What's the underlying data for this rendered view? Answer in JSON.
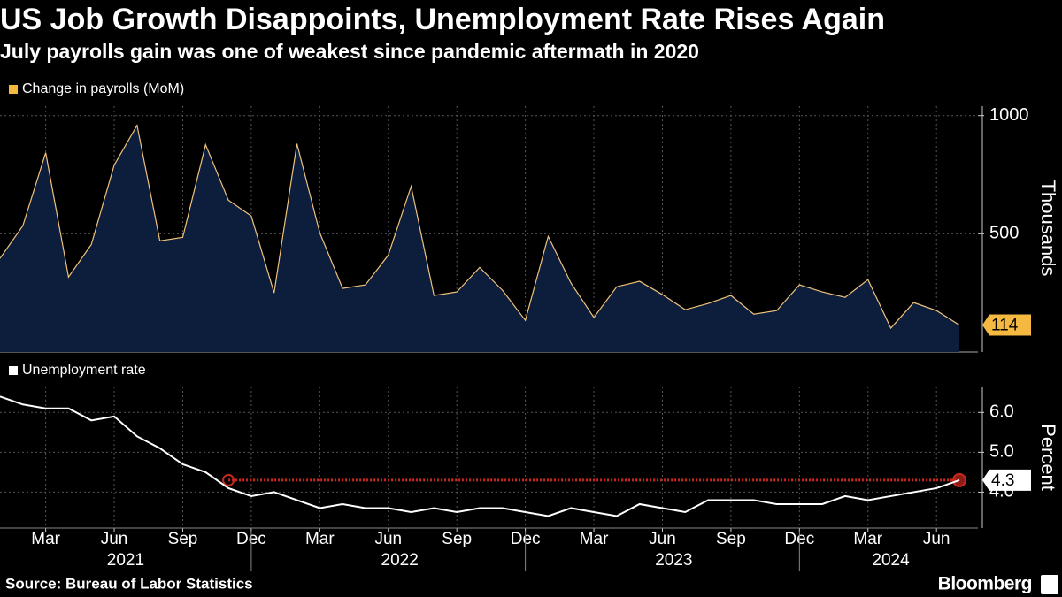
{
  "title": "US Job Growth Disappoints, Unemployment Rate Rises Again",
  "subtitle": "July payrolls gain was one of weakest since pandemic aftermath in 2020",
  "source": "Source: Bureau of Labor Statistics",
  "brand": "Bloomberg",
  "chart_data": [
    {
      "type": "area",
      "series": [
        {
          "name": "Change in payrolls (MoM)",
          "color": "#f0c27a",
          "fill": "#0c1e3b",
          "values": [
            396,
            534,
            843,
            317,
            455,
            791,
            959,
            470,
            485,
            877,
            642,
            575,
            250,
            881,
            504,
            269,
            284,
            410,
            701,
            239,
            254,
            358,
            261,
            134,
            489,
            291,
            146,
            276,
            299,
            243,
            179,
            205,
            239,
            160,
            175,
            284,
            254,
            231,
            306,
            101,
            209,
            175,
            114
          ]
        }
      ],
      "ylabel": "Thousands",
      "ylim": [
        0,
        1040
      ],
      "yticks": [
        500,
        1000
      ],
      "grid": true,
      "last_value_color": "#f5b942"
    },
    {
      "type": "line",
      "categories": [
        "2021-01",
        "2021-02",
        "2021-03",
        "2021-04",
        "2021-05",
        "2021-06",
        "2021-07",
        "2021-08",
        "2021-09",
        "2021-10",
        "2021-11",
        "2021-12",
        "2022-01",
        "2022-02",
        "2022-03",
        "2022-04",
        "2022-05",
        "2022-06",
        "2022-07",
        "2022-08",
        "2022-09",
        "2022-10",
        "2022-11",
        "2022-12",
        "2023-01",
        "2023-02",
        "2023-03",
        "2023-04",
        "2023-05",
        "2023-06",
        "2023-07",
        "2023-08",
        "2023-09",
        "2023-10",
        "2023-11",
        "2023-12",
        "2024-01",
        "2024-02",
        "2024-03",
        "2024-04",
        "2024-05",
        "2024-06",
        "2024-07"
      ],
      "series": [
        {
          "name": "Unemployment rate",
          "color": "#ffffff",
          "values": [
            6.4,
            6.2,
            6.1,
            6.1,
            5.8,
            5.9,
            5.4,
            5.1,
            4.7,
            4.5,
            4.1,
            3.9,
            4.0,
            3.8,
            3.6,
            3.7,
            3.6,
            3.6,
            3.5,
            3.6,
            3.5,
            3.6,
            3.6,
            3.5,
            3.4,
            3.6,
            3.5,
            3.4,
            3.7,
            3.6,
            3.5,
            3.8,
            3.8,
            3.8,
            3.7,
            3.7,
            3.7,
            3.9,
            3.8,
            3.9,
            4.0,
            4.1,
            4.3
          ]
        }
      ],
      "ylabel": "Percent",
      "ylim": [
        3.1,
        6.65
      ],
      "yticks": [
        {
          "value": 4,
          "label": "4.0"
        },
        {
          "value": 5,
          "label": "5.0"
        },
        {
          "value": 6,
          "label": "6.0"
        }
      ],
      "xticks": [
        {
          "value": "2021-03",
          "label": "Mar"
        },
        {
          "value": "2021-06",
          "label": "Jun"
        },
        {
          "value": "2021-09",
          "label": "Sep"
        },
        {
          "value": "2021-12",
          "label": "Dec"
        },
        {
          "value": "2022-03",
          "label": "Mar"
        },
        {
          "value": "2022-06",
          "label": "Jun"
        },
        {
          "value": "2022-09",
          "label": "Sep"
        },
        {
          "value": "2022-12",
          "label": "Dec"
        },
        {
          "value": "2023-03",
          "label": "Mar"
        },
        {
          "value": "2023-06",
          "label": "Jun"
        },
        {
          "value": "2023-09",
          "label": "Sep"
        },
        {
          "value": "2023-12",
          "label": "Dec"
        },
        {
          "value": "2024-03",
          "label": "Mar"
        },
        {
          "value": "2024-06",
          "label": "Jun"
        }
      ],
      "years": [
        "2021",
        "2022",
        "2023",
        "2024"
      ],
      "grid": true,
      "reference_line": {
        "value": 4.3,
        "start": "2021-11",
        "color": "#c8281e"
      },
      "last_value_color": "#ffffff"
    }
  ]
}
